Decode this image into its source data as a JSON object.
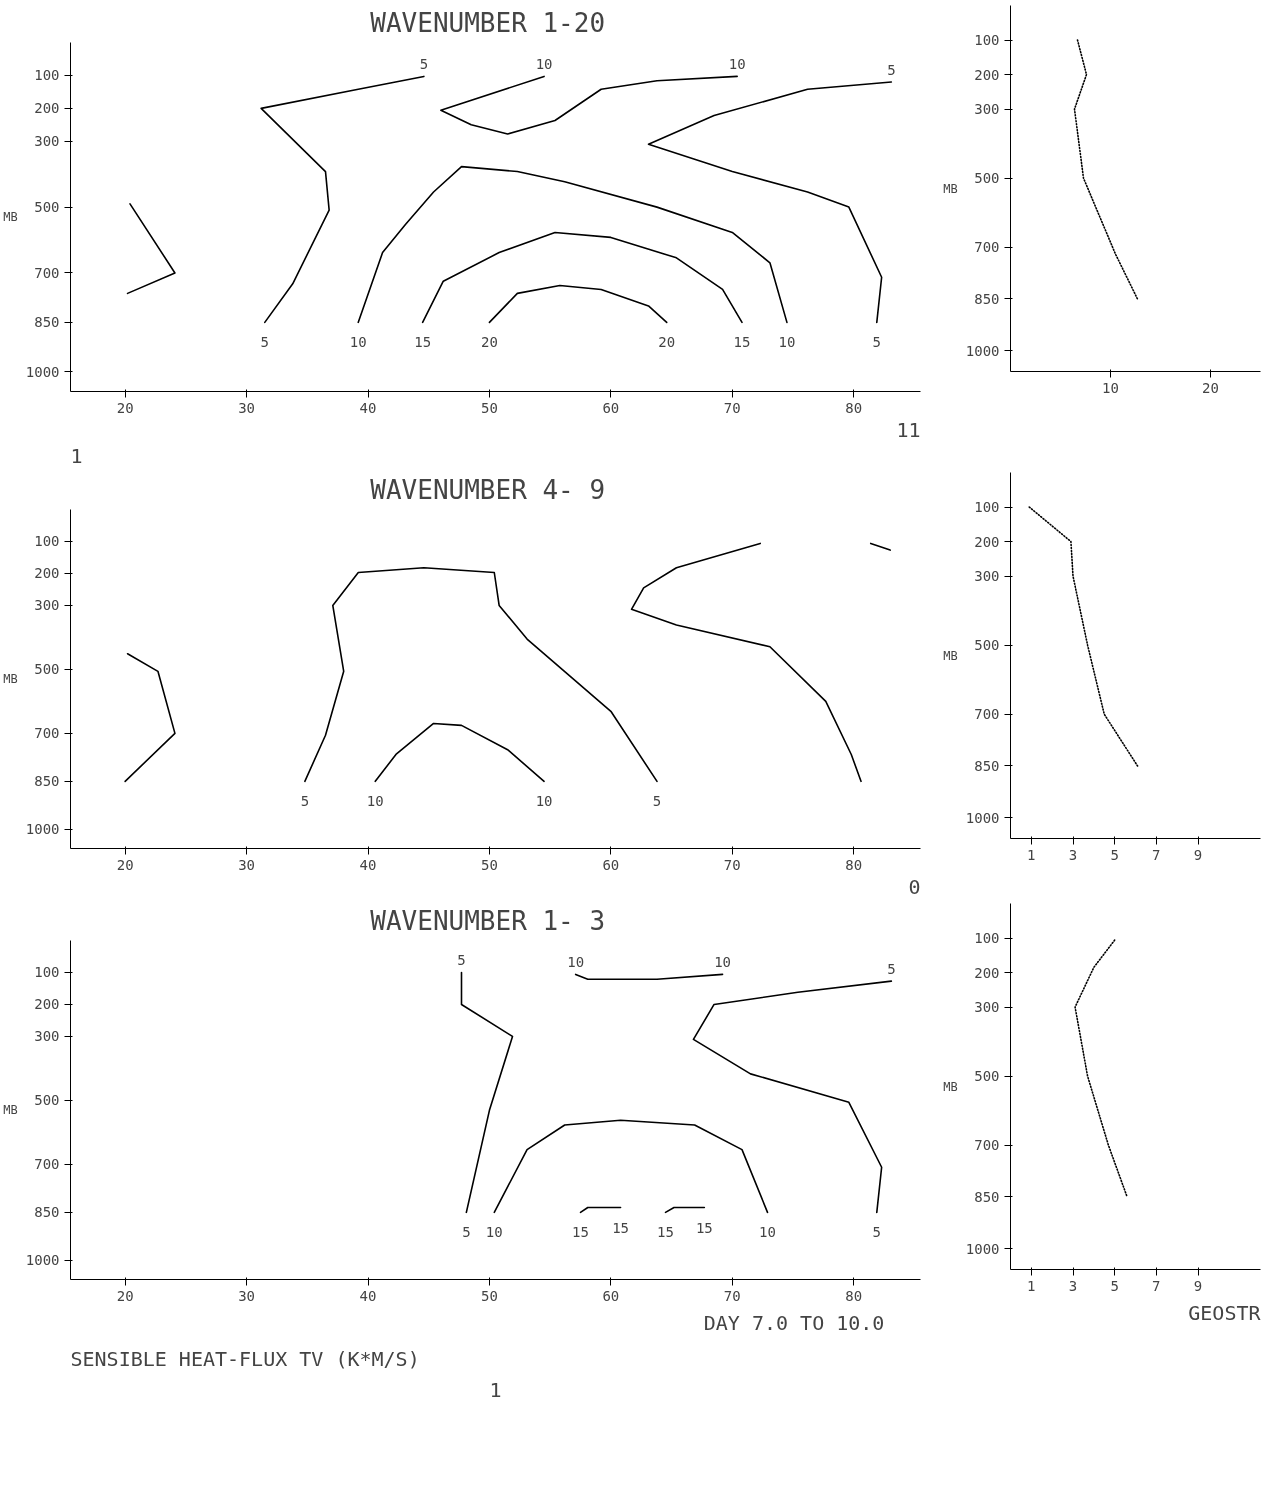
{
  "chart_data": [
    {
      "type": "line",
      "title": "WAVENUMBER  1-20",
      "ylabel": "MB",
      "xlim": [
        15.5,
        85.5
      ],
      "ylim": [
        1060,
        0
      ],
      "xticks": [
        20,
        30,
        40,
        50,
        60,
        70,
        80
      ],
      "yticks": [
        100,
        200,
        300,
        500,
        700,
        850,
        1000
      ],
      "grid": false,
      "line_style": "solid",
      "series": [
        {
          "color": "#000000",
          "x": [
            20.4,
            24.1,
            20.2
          ],
          "values": [
            490,
            700,
            762
          ]
        },
        {
          "name": "5",
          "color": "#000000",
          "x": [
            31.5,
            33.8,
            36.8,
            36.5,
            31.2,
            39.2,
            44.6
          ],
          "values": [
            850,
            733,
            509,
            392,
            200,
            142,
            103
          ]
        },
        {
          "name": "10",
          "color": "#000000",
          "x": [
            54.5,
            46,
            48.5,
            51.5,
            55.4,
            59.2,
            63.8,
            70.4
          ],
          "values": [
            103,
            206,
            250,
            278,
            237,
            142,
            116,
            103
          ]
        },
        {
          "name": "10",
          "color": "#000000",
          "x": [
            39.2,
            41.2,
            43.1,
            45.4,
            47.7,
            52.3,
            56.2,
            63.8,
            70,
            73.1,
            74.5
          ],
          "values": [
            850,
            638,
            552,
            454,
            377,
            392,
            423,
            500,
            577,
            669,
            850
          ]
        },
        {
          "name": "5",
          "color": "#000000",
          "x": [
            83.1,
            76.2,
            68.5,
            63.1,
            70,
            76.2,
            79.6,
            82.3,
            81.9
          ],
          "values": [
            120,
            142,
            222,
            309,
            392,
            454,
            500,
            713,
            850
          ]
        },
        {
          "name": "15",
          "color": "#000000",
          "x": [
            44.5,
            46.2,
            50.8,
            55.4,
            60,
            65.4,
            69.2,
            70.8
          ],
          "values": [
            850,
            725,
            638,
            577,
            592,
            654,
            750,
            850
          ]
        },
        {
          "name": "20",
          "color": "#000000",
          "x": [
            50,
            52.3,
            55.8,
            59.2,
            63.1,
            64.6
          ],
          "values": [
            850,
            762,
            738,
            750,
            800,
            850
          ]
        }
      ],
      "annotations": [
        "11",
        "1"
      ]
    },
    {
      "type": "line",
      "ylabel": "MB",
      "xlim": [
        0,
        25
      ],
      "ylim": [
        1060,
        0
      ],
      "xticks": [
        10,
        20
      ],
      "yticks": [
        100,
        200,
        300,
        500,
        700,
        850,
        1000
      ],
      "grid": false,
      "line_style": "dotted",
      "series": [
        {
          "color": "#000000",
          "x": [
            6.7,
            7.6,
            6.4,
            7.3,
            10.5,
            12.7
          ],
          "values": [
            100,
            200,
            300,
            500,
            720,
            850
          ]
        }
      ]
    },
    {
      "type": "line",
      "title": "WAVENUMBER  4- 9",
      "ylabel": "MB",
      "xlim": [
        15.5,
        85.5
      ],
      "ylim": [
        1060,
        0
      ],
      "xticks": [
        20,
        30,
        40,
        50,
        60,
        70,
        80
      ],
      "yticks": [
        100,
        200,
        300,
        500,
        700,
        850,
        1000
      ],
      "grid": false,
      "line_style": "solid",
      "series": [
        {
          "color": "#000000",
          "x": [
            20.2,
            22.7,
            24.1,
            20
          ],
          "values": [
            451,
            506,
            700,
            850
          ]
        },
        {
          "name": "5",
          "color": "#000000",
          "x": [
            34.8,
            36.5,
            38,
            37.1,
            39.2,
            44.6,
            50.4,
            50.8,
            53.1,
            60,
            63.8
          ],
          "values": [
            850,
            706,
            506,
            300,
            197,
            182,
            197,
            300,
            405,
            631,
            850
          ]
        },
        {
          "name": "10",
          "color": "#000000",
          "x": [
            40.6,
            42.3,
            45.4,
            47.7,
            51.5,
            54.5
          ],
          "values": [
            850,
            766,
            669,
            675,
            751,
            850
          ]
        },
        {
          "color": "#000000",
          "x": [
            72.3,
            65.4,
            62.7,
            61.7,
            65.4,
            73.1,
            77.7,
            79.8,
            80.6
          ],
          "values": [
            106,
            182,
            245,
            312,
            361,
            429,
            600,
            766,
            850
          ]
        },
        {
          "color": "#000000",
          "x": [
            81.4,
            83
          ],
          "values": [
            106,
            127
          ]
        }
      ],
      "annotations": [
        "0"
      ]
    },
    {
      "type": "line",
      "ylabel": "MB",
      "xlim": [
        0,
        12
      ],
      "ylim": [
        1060,
        0
      ],
      "xticks": [
        1,
        3,
        5,
        7,
        9
      ],
      "yticks": [
        100,
        200,
        300,
        500,
        700,
        850,
        1000
      ],
      "grid": false,
      "line_style": "dotted",
      "series": [
        {
          "color": "#000000",
          "x": [
            0.9,
            2.9,
            3,
            3.7,
            4.5,
            6.1
          ],
          "values": [
            100,
            200,
            300,
            500,
            700,
            850
          ]
        }
      ]
    },
    {
      "type": "line",
      "title": "WAVENUMBER  1- 3",
      "ylabel": "MB",
      "xlim": [
        15.5,
        85.5
      ],
      "ylim": [
        1060,
        0
      ],
      "xticks": [
        20,
        30,
        40,
        50,
        60,
        70,
        80
      ],
      "yticks": [
        100,
        200,
        300,
        500,
        700,
        850,
        1000
      ],
      "grid": false,
      "line_style": "solid",
      "series": [
        {
          "name": "5",
          "color": "#000000",
          "x": [
            47.7,
            47.7,
            51.9,
            50,
            48.1
          ],
          "values": [
            100,
            200,
            300,
            531,
            850
          ]
        },
        {
          "name": "10",
          "color": "#000000",
          "x": [
            57.1,
            58.1,
            63.8,
            69.2
          ],
          "values": [
            106,
            121,
            121,
            106
          ]
        },
        {
          "name": "5",
          "color": "#000000",
          "x": [
            83.1,
            75.4,
            68.5,
            66.8,
            71.5,
            79.6,
            82.3,
            81.9
          ],
          "values": [
            127,
            162,
            200,
            309,
            417,
            506,
            709,
            850
          ]
        },
        {
          "name": "10",
          "color": "#000000",
          "x": [
            50.4,
            53.1,
            56.2,
            60.8,
            66.9,
            70.8,
            72.9
          ],
          "values": [
            850,
            654,
            577,
            562,
            577,
            654,
            850
          ]
        },
        {
          "name": "15",
          "color": "#000000",
          "x": [
            57.5,
            58.1,
            60.8
          ],
          "values": [
            850,
            835,
            835
          ]
        },
        {
          "name": "15",
          "color": "#000000",
          "x": [
            64.5,
            65.2,
            67.7
          ],
          "values": [
            850,
            835,
            835
          ]
        }
      ],
      "annotations": [
        "DAY  7.0  TO  10.0",
        "SENSIBLE HEAT-FLUX TV  (K*M/S)",
        "1"
      ]
    },
    {
      "type": "line",
      "ylabel": "MB",
      "xlim": [
        0,
        12
      ],
      "ylim": [
        1060,
        0
      ],
      "xticks": [
        1,
        3,
        5,
        7,
        9
      ],
      "yticks": [
        100,
        200,
        300,
        500,
        700,
        850,
        1000
      ],
      "grid": false,
      "line_style": "dotted",
      "series": [
        {
          "color": "#000000",
          "x": [
            5,
            4,
            3.1,
            3.7,
            4.7,
            5.6
          ],
          "values": [
            106,
            185,
            300,
            500,
            700,
            850
          ]
        }
      ],
      "annotations": [
        "GEOSTR"
      ]
    }
  ]
}
